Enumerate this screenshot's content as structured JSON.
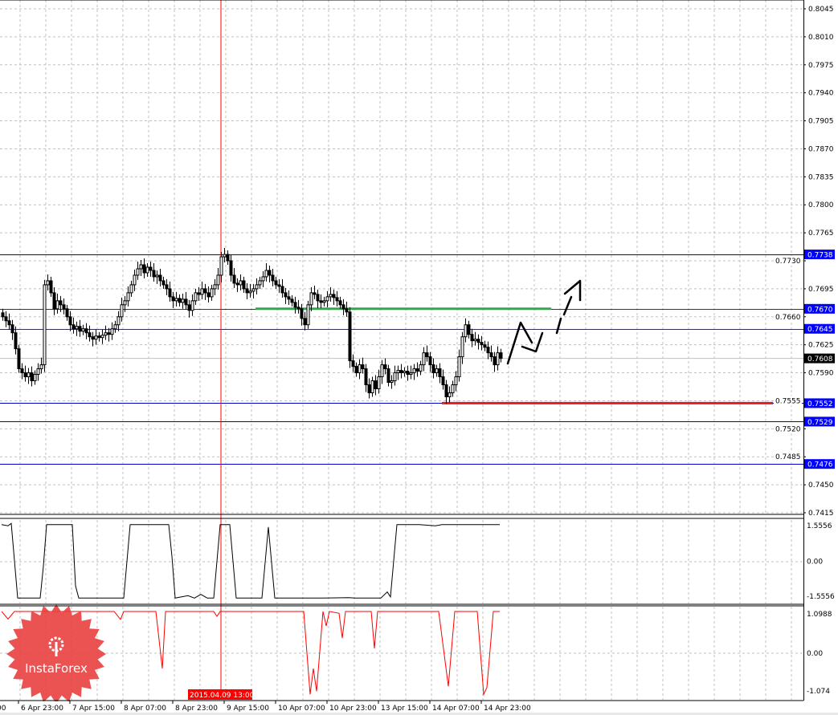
{
  "chart_data": {
    "type": "candlestick",
    "title": "",
    "price_axis": {
      "range": [
        0.7415,
        0.8045
      ],
      "ticks": [
        "0.8045",
        "0.8010",
        "0.7975",
        "0.7940",
        "0.7905",
        "0.7870",
        "0.7835",
        "0.7800",
        "0.7765",
        "0.7730",
        "0.7695",
        "0.7660",
        "0.7625",
        "0.7590",
        "0.7555",
        "0.7520",
        "0.7485",
        "0.7450",
        "0.7415"
      ]
    },
    "time_axis": {
      "labels": [
        "00",
        "6 Apr 23:00",
        "7 Apr 15:00",
        "8 Apr 07:00",
        "8 Apr 23:00",
        "9 Apr 15:00",
        "10 Apr 07:00",
        "10 Apr 23:00",
        "13 Apr 15:00",
        "14 Apr 07:00",
        "14 Apr 23:00"
      ],
      "cursor_label": "2015.04.09 13:00",
      "candle_period": "1 hour"
    },
    "grid": true,
    "closes": [
      0.766,
      0.7655,
      0.765,
      0.764,
      0.762,
      0.7595,
      0.759,
      0.7585,
      0.759,
      0.758,
      0.7588,
      0.7595,
      0.76,
      0.77,
      0.7705,
      0.769,
      0.767,
      0.768,
      0.7675,
      0.767,
      0.766,
      0.765,
      0.7645,
      0.7648,
      0.7642,
      0.7645,
      0.764,
      0.7635,
      0.7632,
      0.7636,
      0.7634,
      0.7637,
      0.764,
      0.7638,
      0.7645,
      0.765,
      0.766,
      0.7675,
      0.768,
      0.769,
      0.77,
      0.7712,
      0.772,
      0.7725,
      0.7715,
      0.7722,
      0.7718,
      0.771,
      0.7712,
      0.7705,
      0.77,
      0.7695,
      0.7685,
      0.768,
      0.7683,
      0.7678,
      0.7682,
      0.7675,
      0.7668,
      0.768,
      0.769,
      0.7688,
      0.7695,
      0.769,
      0.7685,
      0.7695,
      0.77,
      0.7712,
      0.7735,
      0.7738,
      0.773,
      0.7712,
      0.7702,
      0.77,
      0.7705,
      0.7695,
      0.769,
      0.7692,
      0.7695,
      0.77,
      0.7705,
      0.771,
      0.7718,
      0.7712,
      0.7705,
      0.77,
      0.7698,
      0.769,
      0.7685,
      0.7682,
      0.7678,
      0.7672,
      0.767,
      0.7658,
      0.765,
      0.7675,
      0.769,
      0.7688,
      0.768,
      0.7678,
      0.768,
      0.7685,
      0.7688,
      0.7684,
      0.768,
      0.7675,
      0.767,
      0.7666,
      0.7605,
      0.7598,
      0.759,
      0.76,
      0.7595,
      0.7575,
      0.7565,
      0.758,
      0.757,
      0.7585,
      0.76,
      0.7595,
      0.7578,
      0.758,
      0.759,
      0.7593,
      0.759,
      0.7592,
      0.7588,
      0.759,
      0.7595,
      0.7592,
      0.76,
      0.7615,
      0.761,
      0.76,
      0.759,
      0.7595,
      0.7585,
      0.7575,
      0.756,
      0.7565,
      0.7575,
      0.7585,
      0.761,
      0.7635,
      0.765,
      0.7638,
      0.763,
      0.7632,
      0.7628,
      0.7625,
      0.7622,
      0.7615,
      0.761,
      0.76,
      0.7615,
      0.7608
    ],
    "levels": [
      {
        "price": "0.7738",
        "color": "#0000cc"
      },
      {
        "price": "0.7670",
        "color": "#33335a"
      },
      {
        "price": "0.7645",
        "color": "#33335a"
      },
      {
        "price": "0.7552",
        "color": "#0000cc"
      },
      {
        "price": "0.7529",
        "color": "#0000cc"
      },
      {
        "price": "0.7476",
        "color": "#0000cc"
      }
    ],
    "level_label_color": "#0000ff",
    "current_price": {
      "price": "0.7608",
      "color": "#000000"
    },
    "resistance_line": {
      "price": 0.767,
      "color": "#2eaa4a",
      "from_candle": 79,
      "to_candle": 171
    },
    "support_line": {
      "price": 0.7552,
      "color": "#e21a22",
      "from_candle": 137,
      "to_candle": 240
    },
    "cursor_color": "#ff0000",
    "cursor_candle": 68,
    "indicator1": {
      "ticks": [
        "1.5556",
        "0.00",
        "-1.5556"
      ],
      "range": [
        -1.5556,
        1.5556
      ],
      "color": "#000000",
      "points": [
        [
          0,
          1.5
        ],
        [
          2,
          1.45
        ],
        [
          3,
          1.55
        ],
        [
          5,
          -1.5
        ],
        [
          12,
          -1.5
        ],
        [
          13,
          -0.2
        ],
        [
          14,
          1.5
        ],
        [
          22,
          1.5
        ],
        [
          23,
          -1.0
        ],
        [
          24,
          -1.5
        ],
        [
          38,
          -1.5
        ],
        [
          39,
          0
        ],
        [
          40,
          1.5
        ],
        [
          52,
          1.5
        ],
        [
          53,
          0.2
        ],
        [
          54,
          -1.5
        ],
        [
          58,
          -1.4
        ],
        [
          60,
          -1.5
        ],
        [
          62,
          -1.35
        ],
        [
          64,
          -1.5
        ],
        [
          66,
          -1.5
        ],
        [
          67,
          0
        ],
        [
          68,
          1.5
        ],
        [
          71,
          1.5
        ],
        [
          72,
          0
        ],
        [
          73,
          -1.5
        ],
        [
          81,
          -1.5
        ],
        [
          83,
          1.4
        ],
        [
          85,
          -1.5
        ],
        [
          100,
          -1.5
        ],
        [
          108,
          -1.48
        ],
        [
          110,
          -1.5
        ],
        [
          118,
          -1.5
        ],
        [
          120,
          -1.25
        ],
        [
          121,
          -1.45
        ],
        [
          123,
          1.5
        ],
        [
          130,
          1.5
        ],
        [
          135,
          1.45
        ],
        [
          137,
          1.5
        ],
        [
          155,
          1.5
        ]
      ]
    },
    "indicator2": {
      "ticks": [
        "1.0988",
        "0.00",
        "-1.074"
      ],
      "range": [
        -1.074,
        1.0988
      ],
      "color": "#ff0000",
      "points": [
        [
          0,
          1.1
        ],
        [
          2,
          0.9
        ],
        [
          4,
          1.1
        ],
        [
          35,
          1.1
        ],
        [
          37,
          0.89
        ],
        [
          38,
          1.1
        ],
        [
          48,
          1.1
        ],
        [
          50,
          -0.4
        ],
        [
          51,
          1.1
        ],
        [
          66,
          1.1
        ],
        [
          67,
          0.97
        ],
        [
          68,
          1.1
        ],
        [
          94,
          1.1
        ],
        [
          96,
          -1.08
        ],
        [
          97,
          -0.4
        ],
        [
          98,
          -1.0
        ],
        [
          100,
          1.1
        ],
        [
          101,
          0.72
        ],
        [
          102,
          1.1
        ],
        [
          105,
          1.05
        ],
        [
          106,
          0.4
        ],
        [
          107,
          1.1
        ],
        [
          115,
          1.1
        ],
        [
          116,
          0.13
        ],
        [
          117,
          1.1
        ],
        [
          136,
          1.1
        ],
        [
          139,
          -0.87
        ],
        [
          141,
          1.1
        ],
        [
          148,
          1.1
        ],
        [
          150,
          -1.08
        ],
        [
          151,
          -0.9
        ],
        [
          153,
          1.1
        ],
        [
          155,
          1.1
        ]
      ]
    },
    "forecast_drawing": {
      "color": "#000000",
      "direction": "up"
    }
  },
  "watermark": {
    "text": "InstaForex",
    "color": "#e8403f"
  }
}
